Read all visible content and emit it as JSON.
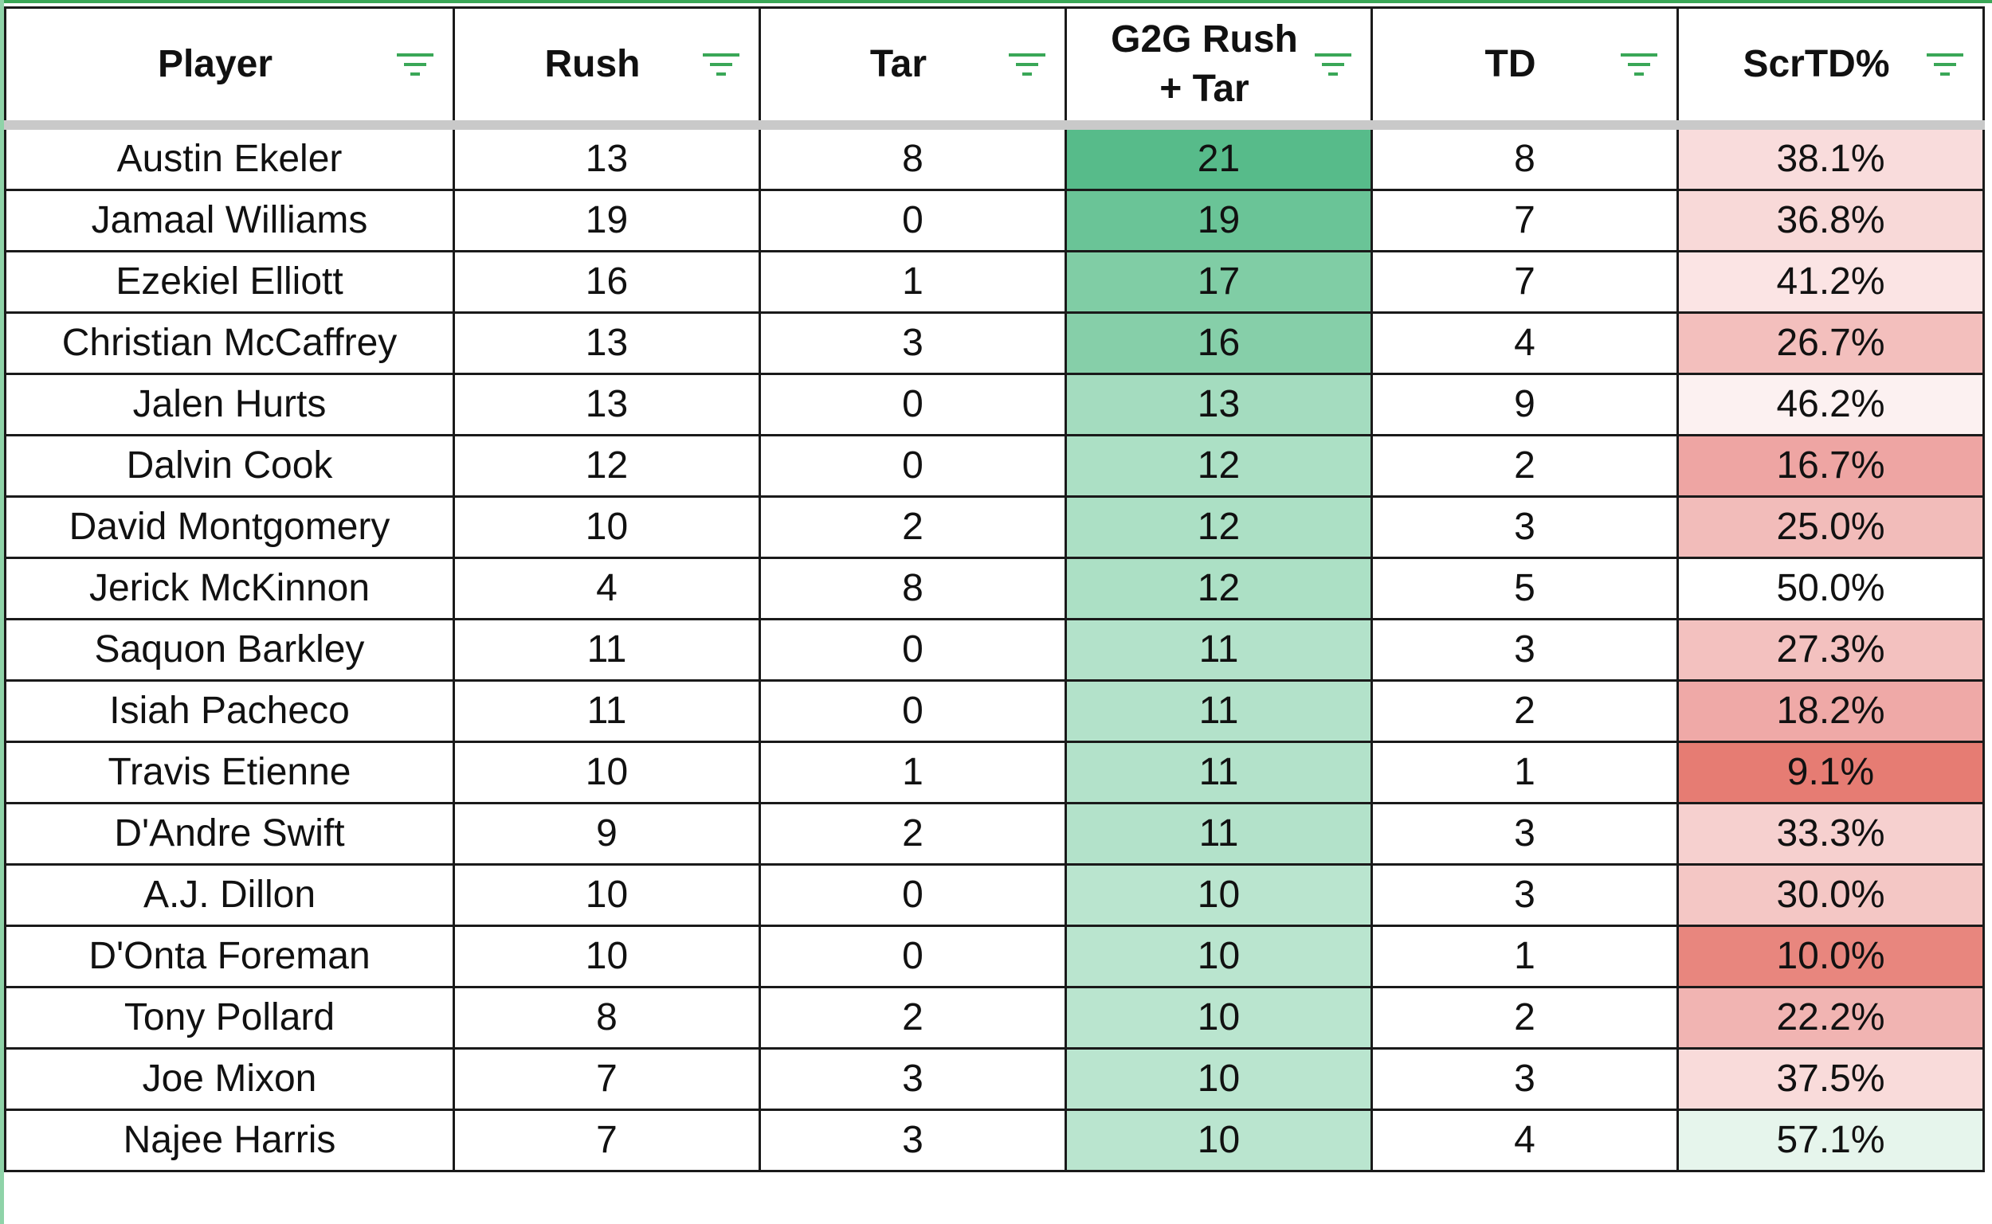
{
  "sheet": {
    "columns": [
      {
        "label": "Player",
        "key": "player"
      },
      {
        "label": "Rush",
        "key": "rush"
      },
      {
        "label": "Tar",
        "key": "tar"
      },
      {
        "label": "G2G Rush\n+ Tar",
        "key": "g2g"
      },
      {
        "label": "TD",
        "key": "td"
      },
      {
        "label": "ScrTD%",
        "key": "scr"
      }
    ],
    "filter_icon": "filter-icon",
    "rows": [
      {
        "player": "Austin Ekeler",
        "rush": "13",
        "tar": "8",
        "g2g": "21",
        "td": "8",
        "scr": "38.1%",
        "g2g_color": "#57bb8a",
        "scr_color": "#f9dcdc"
      },
      {
        "player": "Jamaal Williams",
        "rush": "19",
        "tar": "0",
        "g2g": "19",
        "td": "7",
        "scr": "36.8%",
        "g2g_color": "#6ac497",
        "scr_color": "#f8d9d8"
      },
      {
        "player": "Ezekiel Elliott",
        "rush": "16",
        "tar": "1",
        "g2g": "17",
        "td": "7",
        "scr": "41.2%",
        "g2g_color": "#80cda5",
        "scr_color": "#fbe4e4"
      },
      {
        "player": "Christian McCaffrey",
        "rush": "13",
        "tar": "3",
        "g2g": "16",
        "td": "4",
        "scr": "26.7%",
        "g2g_color": "#86cfa9",
        "scr_color": "#f3bfbd"
      },
      {
        "player": "Jalen Hurts",
        "rush": "13",
        "tar": "0",
        "g2g": "13",
        "td": "9",
        "scr": "46.2%",
        "g2g_color": "#a4dcbf",
        "scr_color": "#fcf1f1"
      },
      {
        "player": "Dalvin Cook",
        "rush": "12",
        "tar": "0",
        "g2g": "12",
        "td": "2",
        "scr": "16.7%",
        "g2g_color": "#ace0c5",
        "scr_color": "#eea5a3"
      },
      {
        "player": "David Montgomery",
        "rush": "10",
        "tar": "2",
        "g2g": "12",
        "td": "3",
        "scr": "25.0%",
        "g2g_color": "#ace0c5",
        "scr_color": "#f2bcba"
      },
      {
        "player": "Jerick McKinnon",
        "rush": "4",
        "tar": "8",
        "g2g": "12",
        "td": "5",
        "scr": "50.0%",
        "g2g_color": "#ace0c5",
        "scr_color": "#ffffff"
      },
      {
        "player": "Saquon Barkley",
        "rush": "11",
        "tar": "0",
        "g2g": "11",
        "td": "3",
        "scr": "27.3%",
        "g2g_color": "#b3e2ca",
        "scr_color": "#f3c1bf"
      },
      {
        "player": "Isiah Pacheco",
        "rush": "11",
        "tar": "0",
        "g2g": "11",
        "td": "2",
        "scr": "18.2%",
        "g2g_color": "#b3e2ca",
        "scr_color": "#efa9a7"
      },
      {
        "player": "Travis Etienne",
        "rush": "10",
        "tar": "1",
        "g2g": "11",
        "td": "1",
        "scr": "9.1%",
        "g2g_color": "#b3e2ca",
        "scr_color": "#e67c73"
      },
      {
        "player": "D'Andre Swift",
        "rush": "9",
        "tar": "2",
        "g2g": "11",
        "td": "3",
        "scr": "33.3%",
        "g2g_color": "#b3e2ca",
        "scr_color": "#f6d0cf"
      },
      {
        "player": "A.J. Dillon",
        "rush": "10",
        "tar": "0",
        "g2g": "10",
        "td": "3",
        "scr": "30.0%",
        "g2g_color": "#bae5cf",
        "scr_color": "#f4c7c5"
      },
      {
        "player": "D'Onta Foreman",
        "rush": "10",
        "tar": "0",
        "g2g": "10",
        "td": "1",
        "scr": "10.0%",
        "g2g_color": "#bae5cf",
        "scr_color": "#e8867e"
      },
      {
        "player": "Tony Pollard",
        "rush": "8",
        "tar": "2",
        "g2g": "10",
        "td": "2",
        "scr": "22.2%",
        "g2g_color": "#bae5cf",
        "scr_color": "#f1b4b2"
      },
      {
        "player": "Joe Mixon",
        "rush": "7",
        "tar": "3",
        "g2g": "10",
        "td": "3",
        "scr": "37.5%",
        "g2g_color": "#bae5cf",
        "scr_color": "#f9dbda"
      },
      {
        "player": "Najee Harris",
        "rush": "7",
        "tar": "3",
        "g2g": "10",
        "td": "4",
        "scr": "57.1%",
        "g2g_color": "#bae5cf",
        "scr_color": "#e6f5ec"
      }
    ]
  }
}
